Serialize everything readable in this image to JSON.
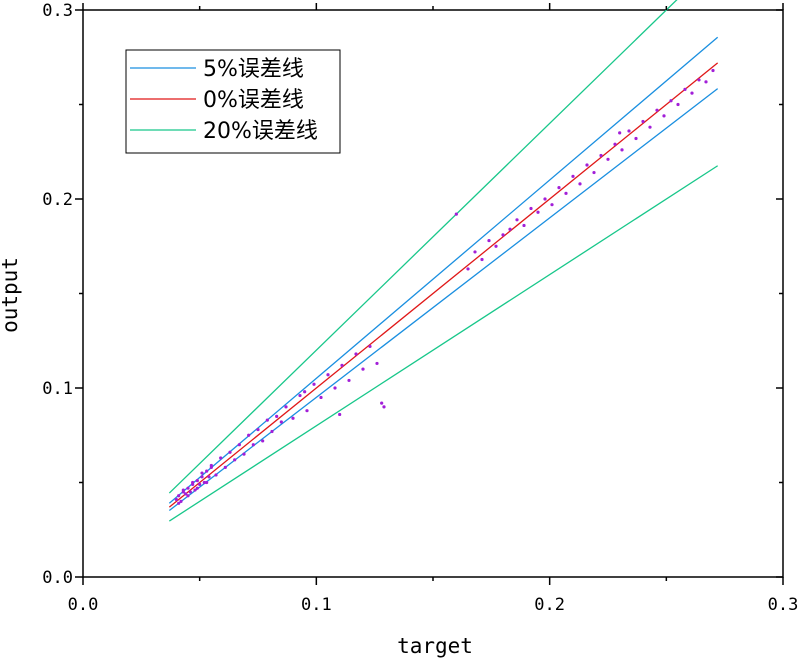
{
  "chart_data": {
    "type": "scatter",
    "title": "",
    "xlabel": "target",
    "ylabel": "output",
    "xlim": [
      0,
      0.3
    ],
    "ylim": [
      0,
      0.3
    ],
    "x_ticks": [
      "0.0",
      "0.1",
      "0.2",
      "0.3"
    ],
    "y_ticks": [
      "0.0",
      "0.1",
      "0.2",
      "0.3"
    ],
    "grid": false,
    "legend_position": "top-left",
    "lines": [
      {
        "name": "5%误差线",
        "color": "#1a8fe0",
        "x": [
          0.037,
          0.272
        ],
        "y_upper": [
          0.039,
          0.2856
        ],
        "y_lower": [
          0.0352,
          0.2584
        ]
      },
      {
        "name": "0%误差线",
        "color": "#e01818",
        "x": [
          0.037,
          0.272
        ],
        "y": [
          0.037,
          0.272
        ]
      },
      {
        "name": "20%误差线",
        "color": "#18c78a",
        "x": [
          0.037,
          0.272
        ],
        "y_upper": [
          0.0444,
          0.3264
        ],
        "y_lower": [
          0.0296,
          0.2176
        ]
      }
    ],
    "scatter_series": {
      "color": "#a21fd8",
      "x": [
        0.04,
        0.041,
        0.042,
        0.043,
        0.044,
        0.045,
        0.046,
        0.047,
        0.048,
        0.049,
        0.05,
        0.051,
        0.052,
        0.053,
        0.054,
        0.055,
        0.041,
        0.043,
        0.045,
        0.047,
        0.049,
        0.051,
        0.053,
        0.055,
        0.057,
        0.059,
        0.061,
        0.063,
        0.065,
        0.067,
        0.069,
        0.071,
        0.073,
        0.075,
        0.077,
        0.079,
        0.081,
        0.083,
        0.085,
        0.087,
        0.09,
        0.093,
        0.096,
        0.099,
        0.102,
        0.105,
        0.108,
        0.111,
        0.114,
        0.117,
        0.12,
        0.123,
        0.126,
        0.129,
        0.165,
        0.168,
        0.171,
        0.174,
        0.177,
        0.18,
        0.183,
        0.186,
        0.189,
        0.192,
        0.195,
        0.198,
        0.201,
        0.204,
        0.207,
        0.21,
        0.213,
        0.216,
        0.219,
        0.222,
        0.225,
        0.228,
        0.231,
        0.234,
        0.237,
        0.24,
        0.243,
        0.246,
        0.249,
        0.252,
        0.255,
        0.258,
        0.261,
        0.264,
        0.267,
        0.27,
        0.16,
        0.23,
        0.095,
        0.11,
        0.128
      ],
      "y": [
        0.041,
        0.043,
        0.04,
        0.045,
        0.044,
        0.047,
        0.045,
        0.049,
        0.046,
        0.051,
        0.049,
        0.053,
        0.05,
        0.056,
        0.053,
        0.058,
        0.039,
        0.046,
        0.043,
        0.05,
        0.047,
        0.055,
        0.05,
        0.059,
        0.054,
        0.063,
        0.058,
        0.066,
        0.062,
        0.07,
        0.065,
        0.075,
        0.07,
        0.078,
        0.072,
        0.083,
        0.077,
        0.085,
        0.082,
        0.09,
        0.084,
        0.096,
        0.088,
        0.102,
        0.095,
        0.107,
        0.1,
        0.112,
        0.104,
        0.118,
        0.11,
        0.122,
        0.113,
        0.09,
        0.163,
        0.172,
        0.168,
        0.178,
        0.175,
        0.181,
        0.184,
        0.189,
        0.186,
        0.195,
        0.193,
        0.2,
        0.197,
        0.206,
        0.203,
        0.212,
        0.208,
        0.218,
        0.214,
        0.223,
        0.221,
        0.229,
        0.226,
        0.236,
        0.232,
        0.241,
        0.238,
        0.247,
        0.244,
        0.252,
        0.25,
        0.258,
        0.256,
        0.263,
        0.262,
        0.268,
        0.192,
        0.235,
        0.098,
        0.086,
        0.092
      ]
    }
  }
}
